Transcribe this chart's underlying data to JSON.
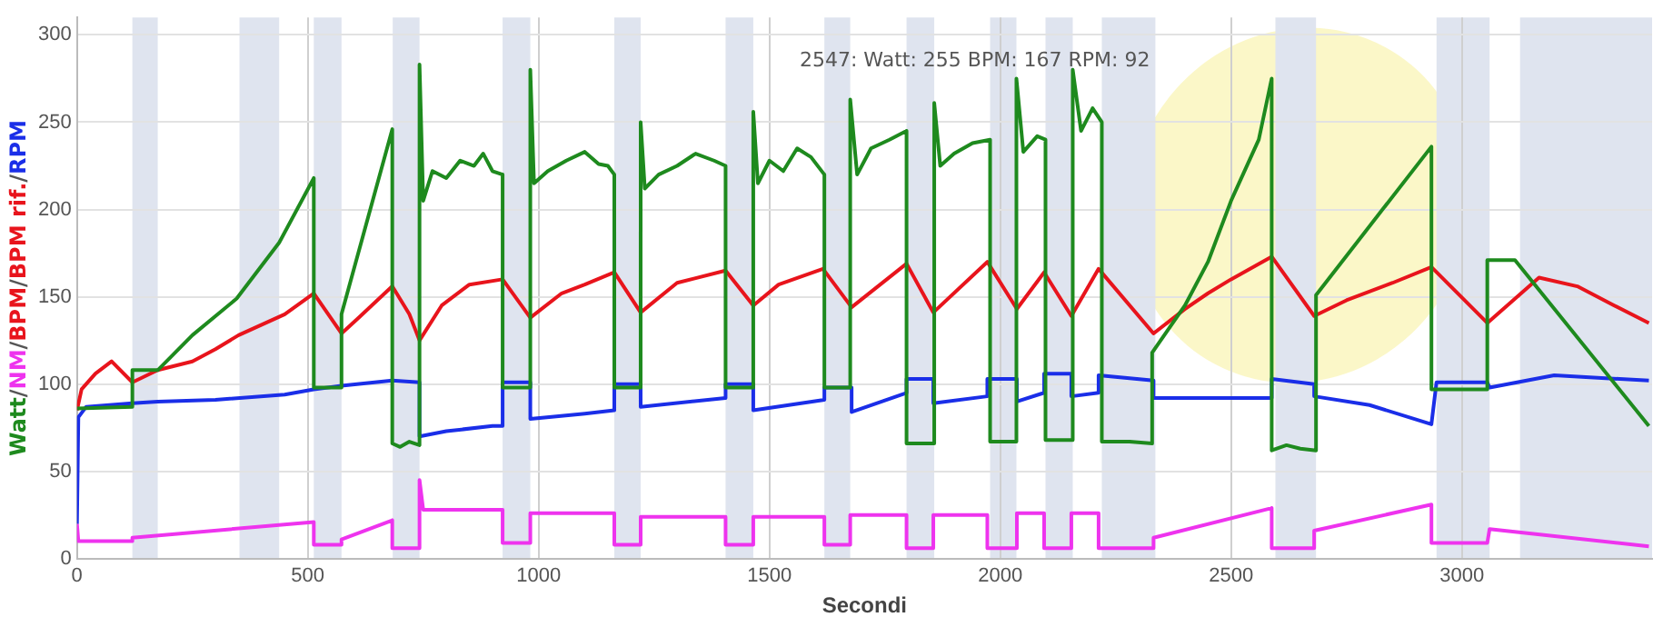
{
  "chart_data": {
    "type": "line",
    "xlabel": "Secondi",
    "ylabel": "Watt/NM/BPM/BPM rif./RPM",
    "annotations": [
      "2547: Watt: 255 BPM: 167 RPM: 92"
    ],
    "xlim": [
      0,
      3412
    ],
    "xticks": [
      0,
      500,
      1000,
      1500,
      2000,
      2500,
      3000
    ],
    "ylim": [
      0,
      310
    ],
    "yticks": [
      0,
      50,
      100,
      150,
      200,
      250,
      300
    ],
    "grid": true,
    "legend": false,
    "marker": "none",
    "line_style": "solid",
    "bands": [
      {
        "axis": "x",
        "from": 120,
        "to": 175,
        "color": "#dfe4ef"
      },
      {
        "axis": "x",
        "from": 352,
        "to": 438,
        "color": "#dfe4ef"
      },
      {
        "axis": "x",
        "from": 513,
        "to": 573,
        "color": "#dfe4ef"
      },
      {
        "axis": "x",
        "from": 684,
        "to": 742,
        "color": "#dfe4ef"
      },
      {
        "axis": "x",
        "from": 922,
        "to": 982,
        "color": "#dfe4ef"
      },
      {
        "axis": "x",
        "from": 1164,
        "to": 1221,
        "color": "#dfe4ef"
      },
      {
        "axis": "x",
        "from": 1405,
        "to": 1465,
        "color": "#dfe4ef"
      },
      {
        "axis": "x",
        "from": 1619,
        "to": 1675,
        "color": "#dfe4ef"
      },
      {
        "axis": "x",
        "from": 1797,
        "to": 1857,
        "color": "#dfe4ef"
      },
      {
        "axis": "x",
        "from": 1978,
        "to": 2035,
        "color": "#dfe4ef"
      },
      {
        "axis": "x",
        "from": 2098,
        "to": 2157,
        "color": "#dfe4ef"
      },
      {
        "axis": "x",
        "from": 2220,
        "to": 2336,
        "color": "#dfe4ef"
      },
      {
        "axis": "x",
        "from": 2596,
        "to": 2684,
        "color": "#dfe4ef"
      },
      {
        "axis": "x",
        "from": 2945,
        "to": 3060,
        "color": "#dfe4ef"
      },
      {
        "axis": "x",
        "from": 3126,
        "to": 3412,
        "color": "#dfe4ef"
      }
    ],
    "series": [
      {
        "color": "#1e8a1e",
        "x": [
          0,
          120,
          120,
          175,
          250,
          346,
          438,
          513,
          513,
          573,
          573,
          683,
          683,
          700,
          720,
          742,
          742,
          750,
          770,
          800,
          830,
          860,
          880,
          900,
          922,
          922,
          982,
          982,
          990,
          1020,
          1060,
          1100,
          1130,
          1150,
          1164,
          1164,
          1221,
          1221,
          1230,
          1260,
          1300,
          1340,
          1380,
          1405,
          1405,
          1465,
          1465,
          1475,
          1500,
          1530,
          1560,
          1590,
          1619,
          1619,
          1675,
          1675,
          1690,
          1720,
          1760,
          1797,
          1797,
          1857,
          1857,
          1870,
          1900,
          1940,
          1978,
          1978,
          2035,
          2035,
          2050,
          2080,
          2098,
          2098,
          2157,
          2157,
          2175,
          2200,
          2220,
          2220,
          2280,
          2329,
          2329,
          2400,
          2450,
          2500,
          2560,
          2588,
          2588,
          2620,
          2650,
          2684,
          2684,
          2934,
          2934,
          3055,
          3055,
          3115,
          3405
        ],
        "values": [
          86,
          87,
          108,
          108,
          128,
          149,
          181,
          218,
          98,
          98,
          140,
          246,
          66,
          64,
          67,
          65,
          283,
          205,
          222,
          218,
          228,
          225,
          232,
          222,
          220,
          98,
          98,
          280,
          215,
          222,
          228,
          233,
          226,
          225,
          220,
          98,
          98,
          250,
          212,
          220,
          225,
          232,
          228,
          225,
          98,
          98,
          256,
          215,
          228,
          222,
          235,
          230,
          220,
          98,
          98,
          263,
          220,
          235,
          240,
          245,
          66,
          66,
          261,
          225,
          232,
          238,
          240,
          67,
          67,
          275,
          233,
          242,
          240,
          68,
          68,
          280,
          245,
          258,
          250,
          67,
          67,
          66,
          118,
          145,
          170,
          205,
          240,
          275,
          62,
          65,
          63,
          62,
          151,
          236,
          97,
          97,
          171,
          171,
          76
        ]
      },
      {
        "color": "#e8141c",
        "x": [
          0,
          10,
          40,
          75,
          120,
          175,
          250,
          300,
          350,
          400,
          450,
          513,
          573,
          610,
          683,
          720,
          742,
          790,
          850,
          922,
          982,
          1050,
          1100,
          1164,
          1221,
          1300,
          1405,
          1465,
          1520,
          1616,
          1678,
          1797,
          1855,
          1972,
          2036,
          2095,
          2154,
          2213,
          2332,
          2400,
          2450,
          2500,
          2588,
          2680,
          2750,
          2850,
          2934,
          3055,
          3167,
          3250,
          3330,
          3405
        ],
        "values": [
          85,
          97,
          106,
          113,
          101,
          108,
          113,
          120,
          128,
          134,
          140,
          152,
          129,
          138,
          156,
          140,
          125,
          145,
          157,
          160,
          138,
          152,
          157,
          164,
          141,
          158,
          165,
          145,
          157,
          166,
          144,
          169,
          141,
          170,
          143,
          164,
          139,
          166,
          129,
          143,
          152,
          160,
          173,
          139,
          148,
          158,
          167,
          135,
          161,
          156,
          145,
          135
        ]
      },
      {
        "color": "#1a2ee8",
        "x": [
          0,
          3,
          20,
          120,
          175,
          300,
          450,
          513,
          573,
          683,
          742,
          742,
          800,
          900,
          922,
          922,
          982,
          982,
          1100,
          1164,
          1164,
          1221,
          1221,
          1405,
          1405,
          1465,
          1465,
          1619,
          1619,
          1678,
          1678,
          1797,
          1797,
          1855,
          1855,
          1972,
          1972,
          2036,
          2036,
          2095,
          2095,
          2154,
          2154,
          2213,
          2213,
          2332,
          2332,
          2588,
          2588,
          2680,
          2680,
          2800,
          2934,
          2945,
          3055,
          3060,
          3200,
          3405
        ],
        "values": [
          20,
          81,
          87,
          89,
          90,
          91,
          94,
          97,
          99,
          102,
          101,
          70,
          73,
          76,
          76,
          101,
          101,
          80,
          83,
          85,
          100,
          100,
          87,
          92,
          100,
          100,
          85,
          91,
          98,
          98,
          84,
          95,
          103,
          103,
          89,
          93,
          103,
          103,
          90,
          95,
          106,
          106,
          93,
          95,
          105,
          102,
          92,
          92,
          103,
          100,
          93,
          88,
          77,
          101,
          101,
          98,
          105,
          102
        ]
      },
      {
        "color": "#ee33ee",
        "x": [
          0,
          3,
          120,
          120,
          513,
          513,
          573,
          573,
          683,
          683,
          742,
          742,
          750,
          922,
          922,
          982,
          982,
          1164,
          1164,
          1221,
          1221,
          1405,
          1405,
          1465,
          1465,
          1619,
          1619,
          1675,
          1675,
          1797,
          1797,
          1855,
          1855,
          1972,
          1972,
          2036,
          2036,
          2095,
          2095,
          2154,
          2154,
          2213,
          2213,
          2332,
          2332,
          2588,
          2588,
          2680,
          2680,
          2934,
          2934,
          3055,
          3060,
          3405
        ],
        "values": [
          20,
          10,
          10,
          12,
          21,
          8,
          8,
          11,
          22,
          6,
          6,
          45,
          28,
          28,
          9,
          9,
          26,
          26,
          8,
          8,
          24,
          24,
          8,
          8,
          24,
          24,
          8,
          8,
          25,
          25,
          6,
          6,
          25,
          25,
          6,
          6,
          26,
          26,
          6,
          6,
          26,
          26,
          6,
          6,
          12,
          29,
          6,
          6,
          16,
          31,
          9,
          9,
          17,
          7
        ]
      }
    ]
  }
}
